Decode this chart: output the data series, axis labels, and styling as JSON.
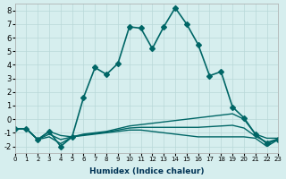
{
  "xlabel": "Humidex (Indice chaleur)",
  "ylabel": "",
  "background_color": "#d6eeee",
  "grid_color": "#b8d8d8",
  "line_color": "#006666",
  "xlim": [
    0,
    23
  ],
  "ylim": [
    -2.5,
    8.5
  ],
  "yticks": [
    -2,
    -1,
    0,
    1,
    2,
    3,
    4,
    5,
    6,
    7,
    8
  ],
  "xticks": [
    0,
    1,
    2,
    3,
    4,
    5,
    6,
    7,
    8,
    9,
    10,
    11,
    12,
    13,
    14,
    15,
    16,
    17,
    18,
    19,
    20,
    21,
    22,
    23
  ],
  "lines": [
    {
      "x": [
        0,
        1,
        2,
        3,
        4,
        5,
        6,
        7,
        8,
        9,
        10,
        11,
        12,
        13,
        14,
        15,
        16,
        17,
        18,
        19,
        20,
        21,
        22,
        23
      ],
      "y": [
        -0.7,
        -0.7,
        -1.5,
        -0.9,
        -2.0,
        -1.3,
        1.6,
        3.8,
        3.3,
        4.1,
        6.8,
        6.7,
        5.2,
        6.8,
        8.2,
        7.0,
        5.5,
        3.2,
        3.5,
        0.9,
        0.1,
        -1.1,
        -1.8,
        -1.5
      ],
      "marker": "D",
      "markersize": 3,
      "linewidth": 1.2
    },
    {
      "x": [
        0,
        1,
        2,
        3,
        4,
        5,
        6,
        7,
        8,
        9,
        10,
        11,
        12,
        13,
        14,
        15,
        16,
        17,
        18,
        19,
        20,
        21,
        22,
        23
      ],
      "y": [
        -0.7,
        -0.7,
        -1.5,
        -0.9,
        -1.2,
        -1.3,
        -1.1,
        -1.0,
        -0.9,
        -0.7,
        -0.5,
        -0.4,
        -0.3,
        -0.2,
        -0.1,
        0.0,
        0.1,
        0.2,
        0.3,
        0.4,
        0.0,
        -1.1,
        -1.4,
        -1.4
      ],
      "marker": null,
      "markersize": 0,
      "linewidth": 1.0
    },
    {
      "x": [
        0,
        1,
        2,
        3,
        4,
        5,
        6,
        7,
        8,
        9,
        10,
        11,
        12,
        13,
        14,
        15,
        16,
        17,
        18,
        19,
        20,
        21,
        22,
        23
      ],
      "y": [
        -0.7,
        -0.7,
        -1.5,
        -1.3,
        -1.8,
        -1.3,
        -1.2,
        -1.1,
        -1.0,
        -0.9,
        -0.8,
        -0.8,
        -0.9,
        -1.0,
        -1.1,
        -1.2,
        -1.3,
        -1.3,
        -1.3,
        -1.3,
        -1.3,
        -1.4,
        -2.0,
        -1.5
      ],
      "marker": null,
      "markersize": 0,
      "linewidth": 1.0
    },
    {
      "x": [
        0,
        1,
        2,
        3,
        4,
        5,
        6,
        7,
        8,
        9,
        10,
        11,
        12,
        13,
        14,
        15,
        16,
        17,
        18,
        19,
        20,
        21,
        22,
        23
      ],
      "y": [
        -0.7,
        -0.7,
        -1.5,
        -1.1,
        -1.5,
        -1.3,
        -1.15,
        -1.05,
        -0.95,
        -0.8,
        -0.65,
        -0.6,
        -0.6,
        -0.6,
        -0.6,
        -0.6,
        -0.6,
        -0.55,
        -0.5,
        -0.45,
        -0.65,
        -1.25,
        -1.7,
        -1.45
      ],
      "marker": null,
      "markersize": 0,
      "linewidth": 1.0
    }
  ]
}
